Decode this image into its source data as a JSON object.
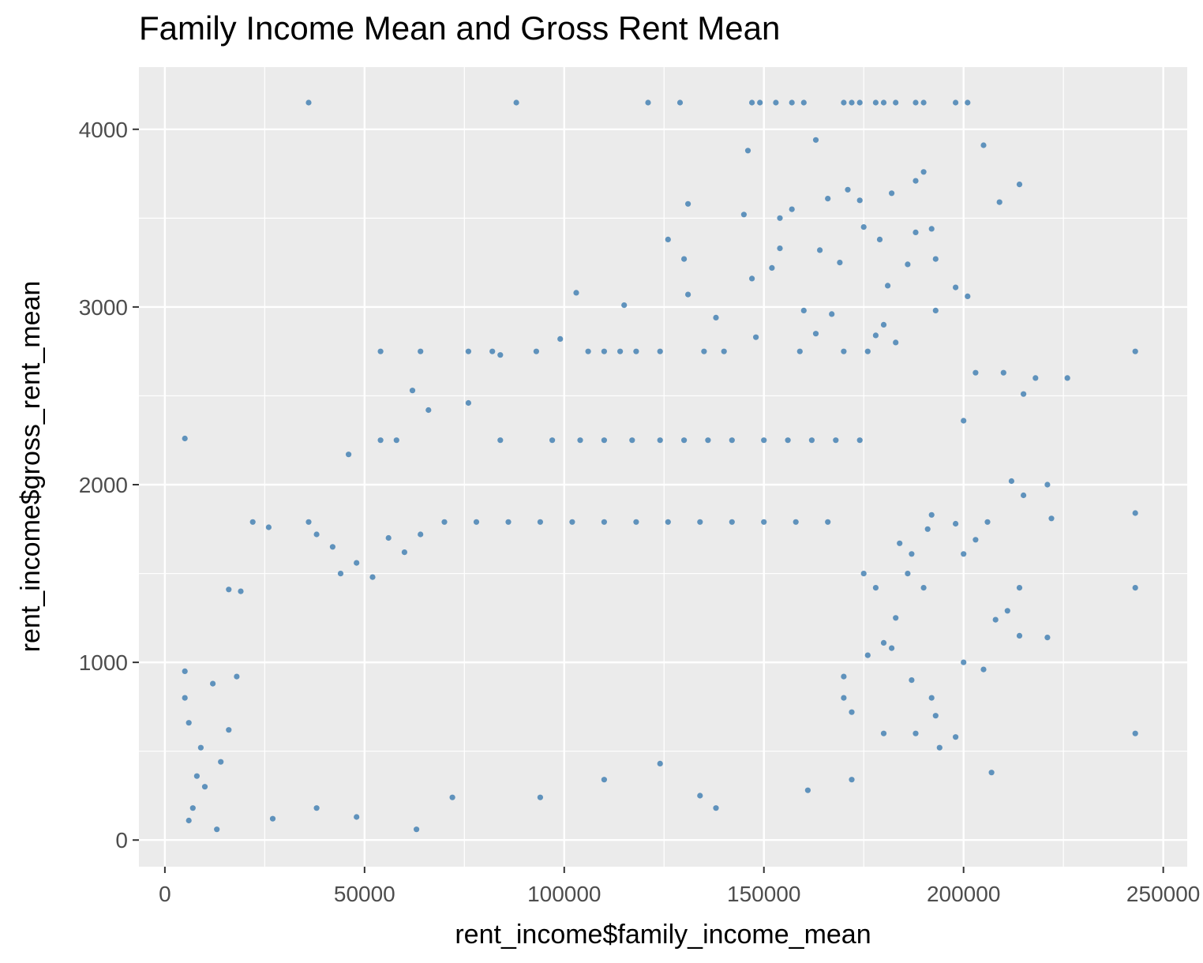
{
  "chart_data": {
    "type": "scatter",
    "title": "Family Income Mean and Gross Rent Mean",
    "xlabel": "rent_income$family_income_mean",
    "ylabel": "rent_income$gross_rent_mean",
    "xlim": [
      -6500,
      256000
    ],
    "ylim": [
      -150,
      4350
    ],
    "x_ticks": [
      0,
      50000,
      100000,
      150000,
      200000,
      250000
    ],
    "x_tick_labels": [
      "0",
      "50000",
      "100000",
      "150000",
      "200000",
      "250000"
    ],
    "y_ticks": [
      0,
      1000,
      2000,
      3000,
      4000
    ],
    "y_tick_labels": [
      "0",
      "1000",
      "2000",
      "3000",
      "4000"
    ],
    "grid": true,
    "colors": {
      "panel": "#ebebeb",
      "grid": "#ffffff",
      "point": "#4682b4"
    },
    "series": [
      {
        "points": [
          [
            36000,
            4150
          ],
          [
            88000,
            4150
          ],
          [
            121000,
            4150
          ],
          [
            129000,
            4150
          ],
          [
            147000,
            4150
          ],
          [
            149000,
            4150
          ],
          [
            153000,
            4150
          ],
          [
            157000,
            4150
          ],
          [
            160000,
            4150
          ],
          [
            170000,
            4150
          ],
          [
            172000,
            4150
          ],
          [
            174000,
            4150
          ],
          [
            178000,
            4150
          ],
          [
            180000,
            4150
          ],
          [
            183000,
            4150
          ],
          [
            188000,
            4150
          ],
          [
            190000,
            4150
          ],
          [
            198000,
            4150
          ],
          [
            201000,
            4150
          ],
          [
            163000,
            3940
          ],
          [
            146000,
            3880
          ],
          [
            205000,
            3910
          ],
          [
            214000,
            3690
          ],
          [
            190000,
            3760
          ],
          [
            171000,
            3660
          ],
          [
            174000,
            3600
          ],
          [
            188000,
            3710
          ],
          [
            166000,
            3610
          ],
          [
            209000,
            3590
          ],
          [
            182000,
            3640
          ],
          [
            157000,
            3550
          ],
          [
            154000,
            3500
          ],
          [
            145000,
            3520
          ],
          [
            131000,
            3580
          ],
          [
            175000,
            3450
          ],
          [
            188000,
            3420
          ],
          [
            192000,
            3440
          ],
          [
            179000,
            3380
          ],
          [
            164000,
            3320
          ],
          [
            154000,
            3330
          ],
          [
            126000,
            3380
          ],
          [
            130000,
            3270
          ],
          [
            147000,
            3160
          ],
          [
            152000,
            3220
          ],
          [
            169000,
            3250
          ],
          [
            186000,
            3240
          ],
          [
            193000,
            3270
          ],
          [
            181000,
            3120
          ],
          [
            198000,
            3110
          ],
          [
            201000,
            3060
          ],
          [
            131000,
            3070
          ],
          [
            103000,
            3080
          ],
          [
            115000,
            3010
          ],
          [
            167000,
            2960
          ],
          [
            160000,
            2980
          ],
          [
            180000,
            2900
          ],
          [
            193000,
            2980
          ],
          [
            138000,
            2940
          ],
          [
            148000,
            2830
          ],
          [
            163000,
            2850
          ],
          [
            178000,
            2840
          ],
          [
            183000,
            2800
          ],
          [
            243000,
            2750
          ],
          [
            210000,
            2630
          ],
          [
            218000,
            2600
          ],
          [
            226000,
            2600
          ],
          [
            215000,
            2510
          ],
          [
            203000,
            2630
          ],
          [
            200000,
            2360
          ],
          [
            54000,
            2750
          ],
          [
            64000,
            2750
          ],
          [
            76000,
            2750
          ],
          [
            82000,
            2750
          ],
          [
            84000,
            2730
          ],
          [
            93000,
            2750
          ],
          [
            99000,
            2820
          ],
          [
            106000,
            2750
          ],
          [
            110000,
            2750
          ],
          [
            114000,
            2750
          ],
          [
            118000,
            2750
          ],
          [
            124000,
            2750
          ],
          [
            135000,
            2750
          ],
          [
            140000,
            2750
          ],
          [
            159000,
            2750
          ],
          [
            170000,
            2750
          ],
          [
            176000,
            2750
          ],
          [
            5000,
            2260
          ],
          [
            46000,
            2170
          ],
          [
            54000,
            2250
          ],
          [
            58000,
            2250
          ],
          [
            62000,
            2530
          ],
          [
            66000,
            2420
          ],
          [
            76000,
            2460
          ],
          [
            84000,
            2250
          ],
          [
            97000,
            2250
          ],
          [
            104000,
            2250
          ],
          [
            110000,
            2250
          ],
          [
            117000,
            2250
          ],
          [
            124000,
            2250
          ],
          [
            130000,
            2250
          ],
          [
            136000,
            2250
          ],
          [
            142000,
            2250
          ],
          [
            150000,
            2250
          ],
          [
            156000,
            2250
          ],
          [
            162000,
            2250
          ],
          [
            168000,
            2250
          ],
          [
            174000,
            2250
          ],
          [
            22000,
            1790
          ],
          [
            26000,
            1760
          ],
          [
            36000,
            1790
          ],
          [
            38000,
            1720
          ],
          [
            16000,
            1410
          ],
          [
            19000,
            1400
          ],
          [
            42000,
            1650
          ],
          [
            44000,
            1500
          ],
          [
            48000,
            1560
          ],
          [
            52000,
            1480
          ],
          [
            56000,
            1700
          ],
          [
            60000,
            1620
          ],
          [
            64000,
            1720
          ],
          [
            70000,
            1790
          ],
          [
            78000,
            1790
          ],
          [
            86000,
            1790
          ],
          [
            94000,
            1790
          ],
          [
            102000,
            1790
          ],
          [
            110000,
            1790
          ],
          [
            118000,
            1790
          ],
          [
            126000,
            1790
          ],
          [
            134000,
            1790
          ],
          [
            142000,
            1790
          ],
          [
            150000,
            1790
          ],
          [
            158000,
            1790
          ],
          [
            166000,
            1790
          ],
          [
            243000,
            1840
          ],
          [
            221000,
            2000
          ],
          [
            215000,
            1940
          ],
          [
            222000,
            1810
          ],
          [
            212000,
            2020
          ],
          [
            206000,
            1790
          ],
          [
            203000,
            1690
          ],
          [
            198000,
            1780
          ],
          [
            214000,
            1420
          ],
          [
            211000,
            1290
          ],
          [
            214000,
            1150
          ],
          [
            221000,
            1140
          ],
          [
            243000,
            1420
          ],
          [
            243000,
            600
          ],
          [
            208000,
            1240
          ],
          [
            207000,
            380
          ],
          [
            200000,
            1000
          ],
          [
            205000,
            960
          ],
          [
            198000,
            580
          ],
          [
            5000,
            950
          ],
          [
            5000,
            800
          ],
          [
            6000,
            660
          ],
          [
            7000,
            180
          ],
          [
            13000,
            60
          ],
          [
            9000,
            520
          ],
          [
            12000,
            880
          ],
          [
            14000,
            440
          ],
          [
            16000,
            620
          ],
          [
            18000,
            920
          ],
          [
            8000,
            360
          ],
          [
            10000,
            300
          ],
          [
            6000,
            110
          ],
          [
            27000,
            120
          ],
          [
            38000,
            180
          ],
          [
            48000,
            130
          ],
          [
            63000,
            60
          ],
          [
            72000,
            240
          ],
          [
            94000,
            240
          ],
          [
            110000,
            340
          ],
          [
            124000,
            430
          ],
          [
            134000,
            250
          ],
          [
            138000,
            180
          ],
          [
            161000,
            280
          ],
          [
            172000,
            340
          ],
          [
            176000,
            1040
          ],
          [
            182000,
            1080
          ],
          [
            180000,
            1110
          ],
          [
            170000,
            920
          ],
          [
            180000,
            600
          ],
          [
            188000,
            600
          ],
          [
            193000,
            700
          ],
          [
            194000,
            520
          ],
          [
            187000,
            900
          ],
          [
            192000,
            800
          ],
          [
            170000,
            800
          ],
          [
            172000,
            720
          ],
          [
            186000,
            1500
          ],
          [
            183000,
            1250
          ],
          [
            190000,
            1420
          ],
          [
            178000,
            1420
          ],
          [
            175000,
            1500
          ],
          [
            187000,
            1610
          ],
          [
            192000,
            1830
          ],
          [
            200000,
            1610
          ],
          [
            191000,
            1750
          ],
          [
            184000,
            1670
          ]
        ]
      }
    ]
  }
}
